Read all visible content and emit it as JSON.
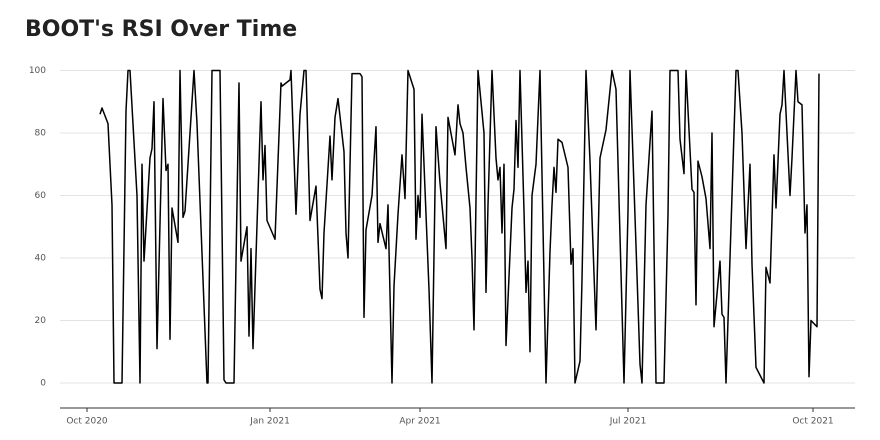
{
  "chart_data": {
    "type": "line",
    "title": "BOOT's RSI Over Time",
    "color": "#000000",
    "grid": true,
    "xlim": [
      -13.5,
      384
    ],
    "ylim": [
      -8,
      104
    ],
    "xticks": [
      {
        "value": 0,
        "label": "Oct 2020"
      },
      {
        "value": 91.5,
        "label": "Jan 2021"
      },
      {
        "value": 166.5,
        "label": "Apr 2021"
      },
      {
        "value": 270.5,
        "label": "Jul 2021"
      },
      {
        "value": 363,
        "label": "Oct 2021"
      }
    ],
    "yticks": [
      0,
      20,
      40,
      60,
      80,
      100
    ],
    "x": [
      6.5,
      7.5,
      10.5,
      12.5,
      13.5,
      17.5,
      19.5,
      20.5,
      21.5,
      25,
      26.5,
      27.5,
      28.5,
      31.5,
      32.5,
      33.5,
      35,
      38,
      39.5,
      40.5,
      41.5,
      42.5,
      45.5,
      46.5,
      48,
      49,
      52.5,
      53.5,
      55,
      60,
      60.5,
      62.5,
      66.5,
      68.5,
      69.5,
      73.5,
      76,
      77,
      80,
      81,
      82,
      83,
      87,
      88,
      89,
      90,
      94,
      97,
      97.5,
      101.5,
      102,
      104.5,
      106.5,
      108.5,
      109.5,
      111.5,
      114.5,
      116.5,
      117.5,
      118.5,
      121.5,
      122.5,
      124,
      125.5,
      128.5,
      129.5,
      130.5,
      132.5,
      136.5,
      137.5,
      138.5,
      139.5,
      142.5,
      144.5,
      145.5,
      146.5,
      149.5,
      150.5,
      152.5,
      153.5,
      155.5,
      157.5,
      159,
      160.5,
      163.5,
      164.5,
      165.5,
      166.5,
      167.5,
      169,
      171,
      172.5,
      174.5,
      176.5,
      179.5,
      180.5,
      184,
      185.5,
      186.5,
      188,
      189.5,
      191.5,
      192.5,
      193.5,
      195.5,
      198.5,
      199.5,
      200.5,
      202.5,
      204.5,
      205.5,
      206.5,
      207.5,
      208.5,
      209.5,
      212.5,
      213.5,
      214.5,
      215.5,
      216.5,
      218.5,
      219.5,
      220.5,
      221.5,
      222.5,
      224.5,
      226.5,
      229.5,
      231.5,
      232.5,
      233.5,
      234.5,
      235.5,
      237.5,
      240.5,
      242,
      243,
      244,
      246.5,
      247.5,
      249.5,
      251.5,
      254.5,
      256.5,
      259.5,
      262.5,
      264.5,
      268.5,
      270.5,
      271.5,
      274.5,
      276.5,
      277.5,
      279.5,
      282.5,
      284.5,
      288.5,
      290.5,
      291.5,
      295.5,
      296.5,
      298.5,
      299.5,
      302.5,
      303.5,
      304.5,
      305.5,
      307.5,
      309.5,
      311.5,
      312.5,
      313.5,
      316.5,
      317.5,
      318.5,
      319.5,
      321.5,
      324.5,
      325.5,
      327.5,
      329.5,
      331.5,
      332.5,
      334.5,
      338.5,
      339.5,
      341.5,
      343.5,
      344.5,
      346.5,
      347.5,
      348.5,
      351.5,
      352.5,
      354.5,
      355.5,
      357.5,
      359,
      360,
      361,
      362,
      365,
      366
    ],
    "values": [
      86,
      88,
      83,
      57,
      0,
      0,
      87,
      100,
      100,
      60,
      0,
      70,
      39,
      72,
      75,
      90,
      11,
      91,
      68,
      70,
      14,
      56,
      45,
      100,
      53,
      55,
      90,
      100,
      83,
      0,
      0,
      100,
      100,
      1,
      0,
      0,
      96,
      39,
      50,
      15,
      43,
      11,
      90,
      65,
      76,
      52,
      46,
      96,
      95,
      97,
      100,
      54,
      86,
      100,
      100,
      52,
      63,
      30,
      27,
      48,
      79,
      65,
      85,
      91,
      74,
      48,
      40,
      99,
      99,
      98,
      21,
      49,
      60,
      82,
      45,
      51,
      43,
      57,
      0,
      31,
      54,
      73,
      59,
      100,
      94,
      46,
      60,
      53,
      86,
      62,
      30,
      0,
      82,
      64,
      43,
      85,
      73,
      89,
      83,
      80,
      69,
      56,
      40,
      17,
      100,
      80,
      29,
      57,
      100,
      72,
      65,
      69,
      48,
      70,
      12,
      56,
      62,
      84,
      69,
      100,
      55,
      29,
      39,
      10,
      60,
      70,
      100,
      0,
      42,
      57,
      69,
      61,
      78,
      77,
      69,
      38,
      43,
      0,
      7,
      33,
      100,
      71,
      17,
      72,
      81,
      100,
      94,
      0,
      55,
      100,
      44,
      6,
      0,
      57,
      87,
      0,
      0,
      54,
      100,
      100,
      78,
      67,
      100,
      62,
      61,
      25,
      71,
      66,
      59,
      43,
      80,
      18,
      39,
      22,
      21,
      0,
      40,
      100,
      100,
      80,
      43,
      70,
      38,
      5,
      0,
      37,
      32,
      73,
      56,
      86,
      89,
      100,
      60,
      72,
      100,
      90,
      89,
      48,
      57,
      2,
      20,
      18,
      99
    ]
  }
}
